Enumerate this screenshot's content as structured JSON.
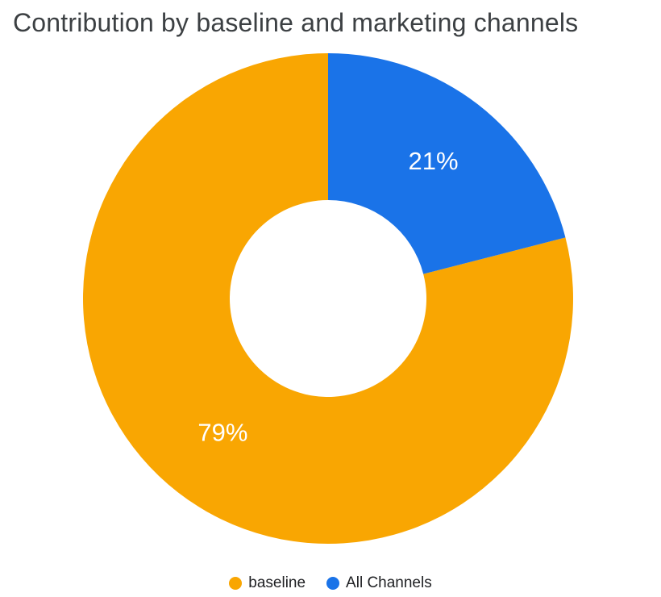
{
  "title": "Contribution by baseline and marketing channels",
  "chart_data": {
    "type": "pie",
    "donut": true,
    "title": "Contribution by baseline and marketing channels",
    "series": [
      {
        "name": "baseline",
        "value": 79,
        "label": "79%",
        "color": "#F9A602"
      },
      {
        "name": "All Channels",
        "value": 21,
        "label": "21%",
        "color": "#1A73E8"
      }
    ],
    "rotation_deg": 75.6,
    "inner_radius_ratio": 0.4,
    "data_label_color": "#FFFFFF",
    "legend_position": "bottom",
    "background": "#FFFFFF"
  },
  "legend": {
    "items": [
      {
        "label": "baseline",
        "color": "#F9A602"
      },
      {
        "label": "All Channels",
        "color": "#1A73E8"
      }
    ]
  }
}
